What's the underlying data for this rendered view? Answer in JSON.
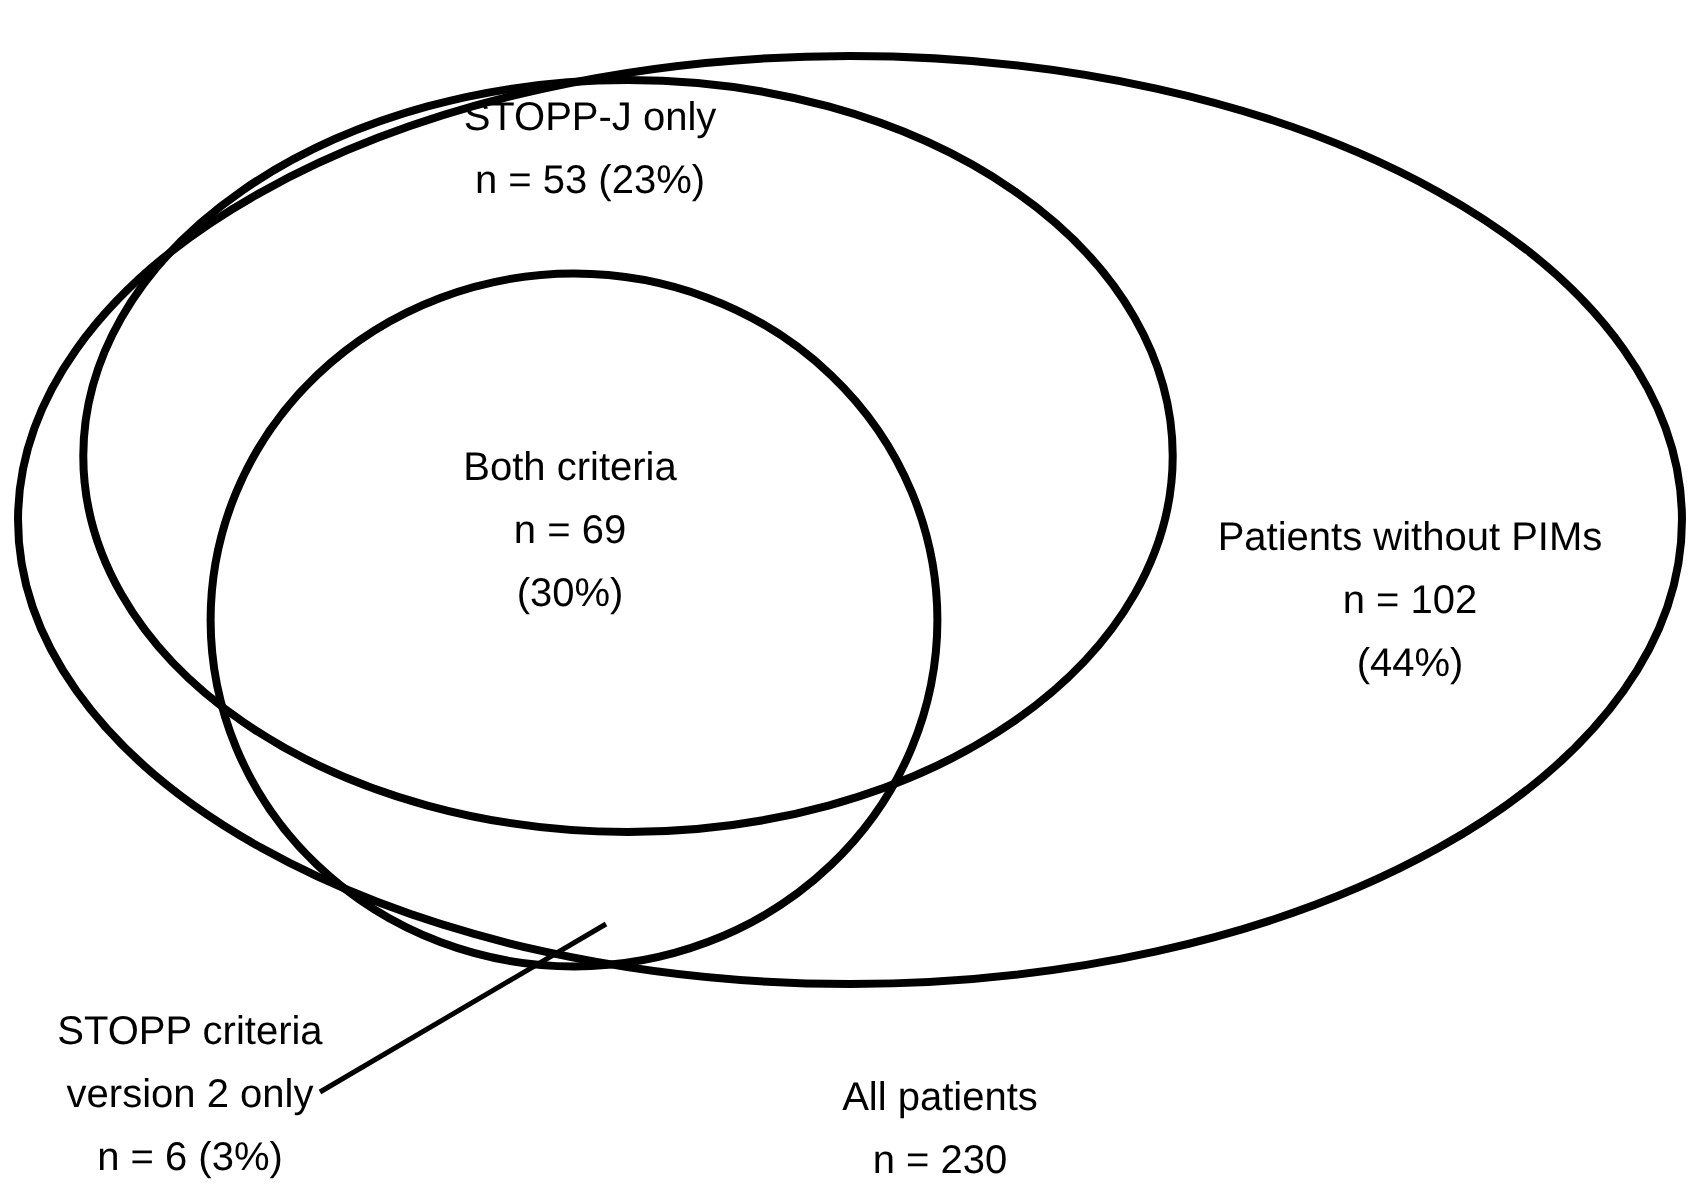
{
  "chart_data": {
    "type": "other",
    "categories": [
      "All patients",
      "STOPP-J only",
      "STOPP criteria\nversion 2 only",
      "Both criteria",
      "Patients without PIMs"
    ],
    "values": [
      230,
      53,
      6,
      69,
      102
    ],
    "value_labels": [
      "n = 230",
      "n = 53 (23%)",
      "n = 6 (3%)",
      "n = 69\n(30%)",
      "n = 102\n(44%)"
    ]
  }
}
